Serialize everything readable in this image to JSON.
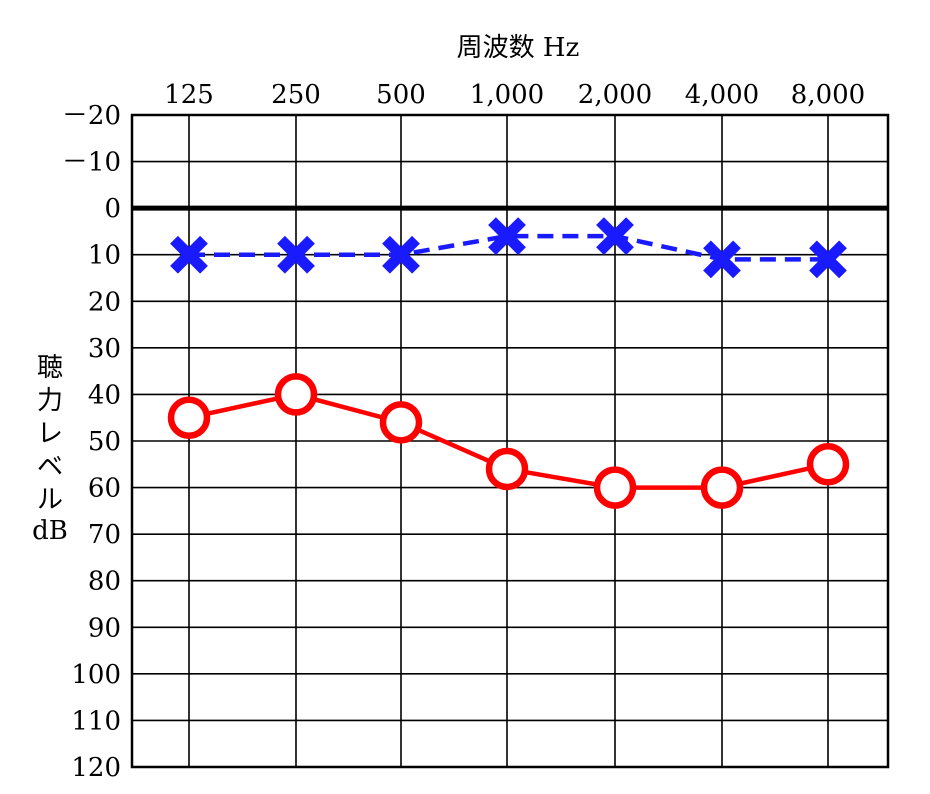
{
  "chart_data": {
    "type": "line",
    "title": "周波数 Hz",
    "xlabel": "周波数 Hz",
    "ylabel": "聴力レベル dB",
    "ylabel_lines": [
      "聴",
      "力",
      "レ",
      "ベ",
      "ル",
      "dB"
    ],
    "categories": [
      "125",
      "250",
      "500",
      "1,000",
      "2,000",
      "4,000",
      "8,000"
    ],
    "yticks": [
      "－20",
      "－10",
      "0",
      "10",
      "20",
      "30",
      "40",
      "50",
      "60",
      "70",
      "80",
      "90",
      "100",
      "110",
      "120"
    ],
    "ylim": [
      -20,
      120
    ],
    "y_inverted": true,
    "grid": true,
    "series": [
      {
        "marker": "x",
        "line_style": "dashed",
        "color": "#1a1aff",
        "values": [
          10,
          10,
          10,
          6,
          6,
          11,
          11
        ]
      },
      {
        "marker": "o",
        "line_style": "solid",
        "color": "#ff0000",
        "values": [
          45,
          40,
          46,
          56,
          60,
          60,
          55
        ]
      }
    ]
  }
}
